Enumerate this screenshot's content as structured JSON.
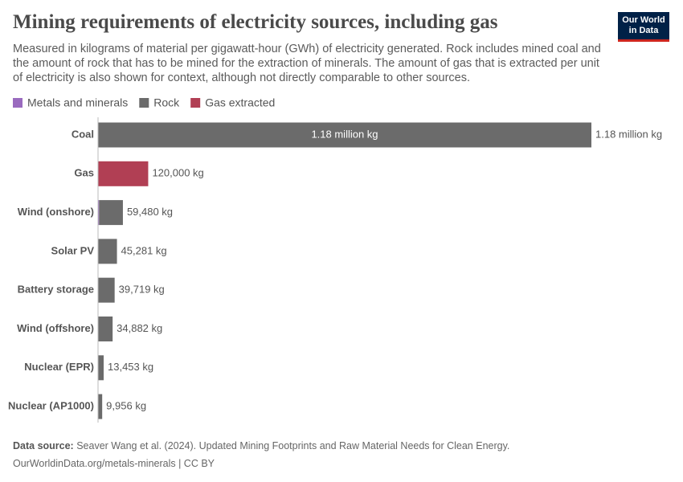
{
  "header": {
    "title": "Mining requirements of electricity sources, including gas",
    "subtitle": "Measured in kilograms of material per gigawatt-hour (GWh) of electricity generated. Rock includes mined coal and the amount of rock that has to be mined for the extraction of minerals. The amount of gas that is extracted per unit of electricity is also shown for context, although not directly comparable to other sources.",
    "logo": [
      "Our World",
      "in Data"
    ]
  },
  "chart_data": {
    "type": "stacked-bar-horizontal",
    "categories": [
      "Coal",
      "Gas",
      "Wind (onshore)",
      "Solar PV",
      "Battery storage",
      "Wind (offshore)",
      "Nuclear (EPR)",
      "Nuclear (AP1000)"
    ],
    "series": [
      {
        "name": "Metals and minerals",
        "color": "#9a6bbf",
        "values": [
          null,
          null,
          2500,
          null,
          null,
          null,
          null,
          null
        ]
      },
      {
        "name": "Rock",
        "color": "#6b6b6b",
        "values": [
          1180000,
          null,
          56980,
          45281,
          39719,
          34882,
          13453,
          9956
        ],
        "value_labels": [
          "1.18 million kg",
          null,
          null,
          null,
          null,
          null,
          null,
          null
        ]
      },
      {
        "name": "Gas extracted",
        "color": "#b13f54",
        "values": [
          null,
          120000,
          null,
          null,
          null,
          null,
          null,
          null
        ]
      }
    ],
    "totals": [
      1180000,
      120000,
      59480,
      45281,
      39719,
      34882,
      13453,
      9956
    ],
    "total_labels": [
      "1.18 million kg",
      "120,000 kg",
      "59,480 kg",
      "45,281 kg",
      "39,719 kg",
      "34,882 kg",
      "13,453 kg",
      "9,956 kg"
    ],
    "xlim": [
      0,
      1180000
    ]
  },
  "footer": {
    "source_label": "Data source:",
    "source": "Seaver Wang et al. (2024). Updated Mining Footprints and Raw Material Needs for Clean Energy.",
    "url": "OurWorldinData.org/metals-minerals | CC BY"
  }
}
